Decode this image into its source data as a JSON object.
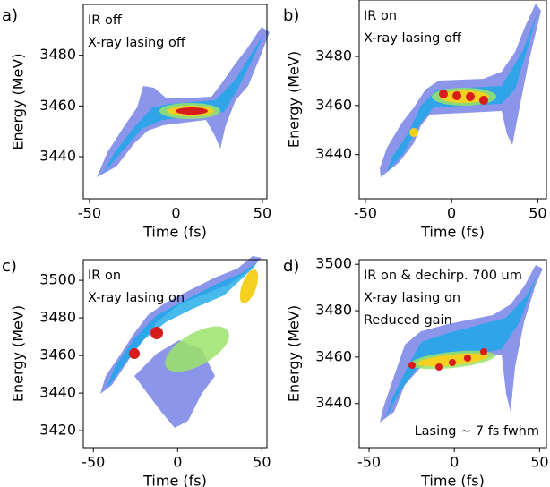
{
  "chart_data": [
    {
      "type": "heatmap",
      "panel_label": "a)",
      "annotations": [
        "IR off",
        "X-ray lasing off"
      ],
      "xlabel": "Time (fs)",
      "ylabel": "Energy (MeV)",
      "xlim": [
        -53.6,
        52.6
      ],
      "ylim": [
        3423.4,
        3500
      ],
      "xticks": [
        -50,
        0,
        50
      ],
      "yticks": [
        3440,
        3460,
        3480
      ]
    },
    {
      "type": "heatmap",
      "panel_label": "b)",
      "annotations": [
        "IR on",
        "X-ray lasing off"
      ],
      "xlabel": "Time (fs)",
      "ylabel": "Energy (MeV)",
      "xlim": [
        -53.6,
        55
      ],
      "ylim": [
        3422,
        3503
      ],
      "xticks": [
        -50,
        0,
        50
      ],
      "yticks": [
        3440,
        3460,
        3480
      ]
    },
    {
      "type": "heatmap",
      "panel_label": "c)",
      "annotations": [
        "IR on",
        "X-ray lasing on"
      ],
      "xlabel": "Time (fs)",
      "ylabel": "Energy (MeV)",
      "xlim": [
        -56,
        53
      ],
      "ylim": [
        3411,
        3511
      ],
      "xticks": [
        -50,
        0,
        50
      ],
      "yticks": [
        3420,
        3440,
        3460,
        3480,
        3500
      ]
    },
    {
      "type": "heatmap",
      "panel_label": "d)",
      "annotations": [
        "IR on & dechirp. 700 um",
        "X-ray lasing on",
        "Reduced gain"
      ],
      "note": "Lasing ~ 7 fs fwhm",
      "xlabel": "Time (fs)",
      "ylabel": "Energy (MeV)",
      "xlim": [
        -55.8,
        54
      ],
      "ylim": [
        3421,
        3502
      ],
      "xticks": [
        -50,
        0,
        50
      ],
      "yticks": [
        3440,
        3460,
        3480,
        3500
      ]
    }
  ]
}
